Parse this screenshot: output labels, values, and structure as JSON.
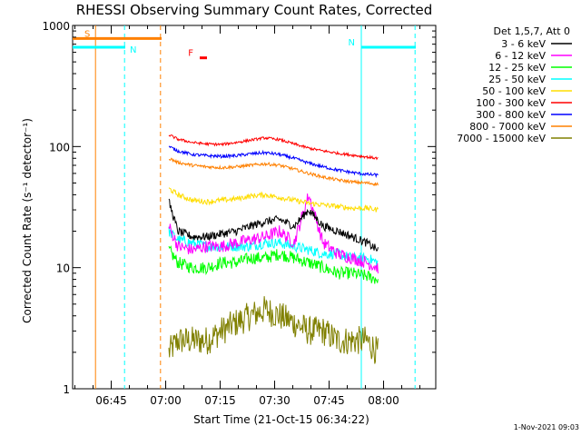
{
  "chart_data": {
    "type": "line",
    "title": "RHESSI Observing Summary Count Rates, Corrected",
    "xlabel": "Start Time (21-Oct-15 06:34:22)",
    "ylabel": "Corrected Count Rate (s⁻¹ detector⁻¹)",
    "yscale": "log",
    "ylim": [
      1,
      1000
    ],
    "xlim_minutes": [
      0,
      100
    ],
    "x_unit": "minutes after start",
    "yticks": [
      {
        "value": 1,
        "label": "1"
      },
      {
        "value": 10,
        "label": "10"
      },
      {
        "value": 100,
        "label": "100"
      },
      {
        "value": 1000,
        "label": "1000"
      }
    ],
    "xticks": [
      {
        "value": 10.63,
        "label": "06:45"
      },
      {
        "value": 25.63,
        "label": "07:00"
      },
      {
        "value": 40.63,
        "label": "07:15"
      },
      {
        "value": 55.63,
        "label": "07:30"
      },
      {
        "value": 70.63,
        "label": "07:45"
      },
      {
        "value": 85.63,
        "label": "08:00"
      }
    ],
    "legend_header": "Det 1,5,7, Att 0",
    "legend_position": "right",
    "data_interval_minutes": [
      26.5,
      84.2
    ],
    "series": [
      {
        "name": "3 - 6 keV",
        "color": "#000000",
        "x": [
          26.5,
          29,
          33,
          37,
          41,
          45,
          49,
          53,
          57,
          61,
          65,
          69,
          73,
          77,
          81,
          84
        ],
        "values": [
          35,
          20,
          18,
          18,
          19,
          20,
          22,
          24,
          25,
          22,
          30,
          22,
          20,
          18,
          16,
          14
        ]
      },
      {
        "name": "6 - 12 keV",
        "color": "#ff00ff",
        "x": [
          26.5,
          29,
          33,
          37,
          41,
          45,
          49,
          53,
          57,
          61,
          65,
          69,
          73,
          77,
          81,
          84
        ],
        "values": [
          22,
          15,
          14,
          15,
          15,
          16,
          17,
          18,
          20,
          16,
          40,
          16,
          13,
          12,
          11,
          10
        ]
      },
      {
        "name": "12 - 25 keV",
        "color": "#00ff00",
        "x": [
          26.5,
          29,
          33,
          37,
          41,
          45,
          49,
          53,
          57,
          61,
          65,
          69,
          73,
          77,
          81,
          84
        ],
        "values": [
          14,
          11,
          10,
          10,
          11,
          11,
          12,
          12,
          13,
          12,
          11,
          10,
          9,
          9,
          8.5,
          8
        ]
      },
      {
        "name": "25 - 50 keV",
        "color": "#00ffff",
        "x": [
          26.5,
          29,
          33,
          37,
          41,
          45,
          49,
          53,
          57,
          61,
          65,
          69,
          73,
          77,
          81,
          84
        ],
        "values": [
          20,
          17,
          16,
          15,
          15,
          15,
          15,
          16,
          16,
          15,
          14,
          13,
          13,
          12,
          12,
          11
        ]
      },
      {
        "name": "50 - 100 keV",
        "color": "#ffdd00",
        "x": [
          26.5,
          29,
          33,
          37,
          41,
          45,
          49,
          53,
          57,
          61,
          65,
          69,
          73,
          77,
          81,
          84
        ],
        "values": [
          45,
          40,
          36,
          35,
          36,
          37,
          39,
          40,
          38,
          36,
          34,
          33,
          32,
          31,
          31,
          30
        ]
      },
      {
        "name": "100 - 300 keV",
        "color": "#ff0000",
        "x": [
          26.5,
          29,
          33,
          37,
          41,
          45,
          49,
          53,
          57,
          61,
          65,
          69,
          73,
          77,
          81,
          84
        ],
        "values": [
          125,
          115,
          108,
          105,
          104,
          108,
          113,
          118,
          114,
          105,
          97,
          92,
          88,
          85,
          82,
          80
        ]
      },
      {
        "name": "300 - 800 keV",
        "color": "#0000ff",
        "x": [
          26.5,
          29,
          33,
          37,
          41,
          45,
          49,
          53,
          57,
          61,
          65,
          69,
          73,
          77,
          81,
          84
        ],
        "values": [
          100,
          92,
          86,
          84,
          83,
          84,
          87,
          89,
          86,
          80,
          73,
          68,
          64,
          61,
          59,
          58
        ]
      },
      {
        "name": "800 - 7000 keV",
        "color": "#ff8000",
        "x": [
          26.5,
          29,
          33,
          37,
          41,
          45,
          49,
          53,
          57,
          61,
          65,
          69,
          73,
          77,
          81,
          84
        ],
        "values": [
          80,
          74,
          70,
          68,
          67,
          68,
          70,
          72,
          70,
          65,
          60,
          56,
          53,
          51,
          50,
          49
        ]
      },
      {
        "name": "7000 - 15000 keV",
        "color": "#808000",
        "x": [
          26.5,
          29,
          33,
          37,
          41,
          45,
          49,
          53,
          57,
          61,
          65,
          69,
          73,
          77,
          81,
          84
        ],
        "values": [
          2,
          2.5,
          2.5,
          2.5,
          3,
          3.5,
          4,
          4.5,
          4,
          3.5,
          3,
          3,
          2.5,
          2.5,
          2.5,
          2
        ]
      }
    ],
    "annotations": [
      {
        "label": "S",
        "color": "#ff8000",
        "x_start": 0,
        "x_end": 24.5,
        "y": 780
      },
      {
        "label": "N",
        "color": "#00ffff",
        "x_start": 0,
        "x_end": 14.5,
        "y": 660
      },
      {
        "label": "N",
        "color": "#00ffff",
        "x_start": 79.5,
        "x_end": 94.5,
        "y": 660
      },
      {
        "label": "F",
        "color": "#ff0000",
        "x_start": 35,
        "x_end": 37,
        "y": 540
      }
    ],
    "vertical_markers": [
      {
        "x": 6.3,
        "color": "#ff8000",
        "style": "solid"
      },
      {
        "x": 14.3,
        "color": "#00ffff",
        "style": "dashed"
      },
      {
        "x": 24.2,
        "color": "#ff8000",
        "style": "dashed"
      },
      {
        "x": 79.5,
        "color": "#00ffff",
        "style": "solid"
      },
      {
        "x": 94.3,
        "color": "#00ffff",
        "style": "dashed"
      }
    ]
  },
  "timestamp": "1-Nov-2021 09:03"
}
